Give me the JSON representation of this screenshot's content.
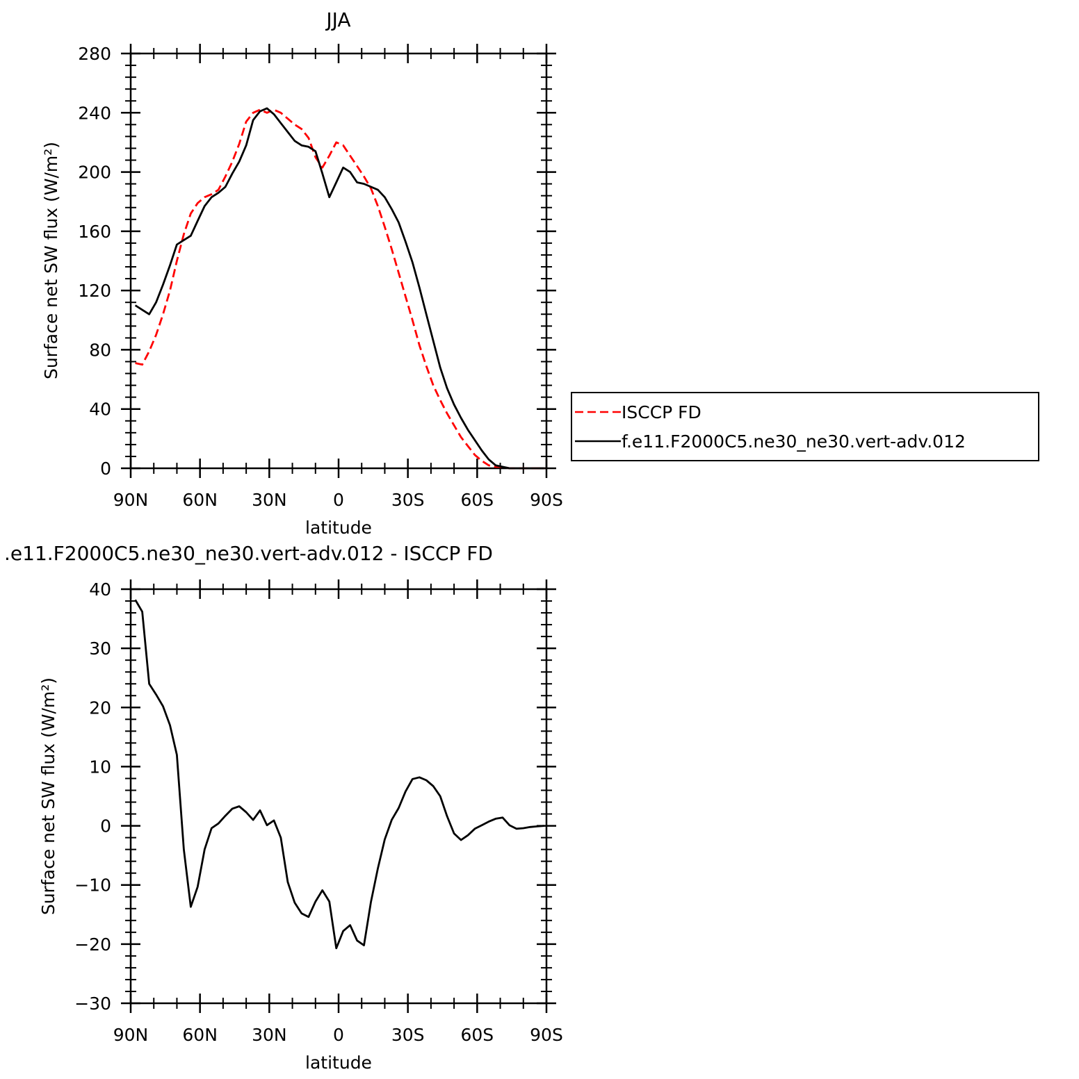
{
  "chart_data": [
    {
      "type": "line",
      "title": "JJA",
      "xlabel": "latitude",
      "ylabel": "Surface net SW flux (W/m²)",
      "xlim": [
        90,
        -90
      ],
      "ylim": [
        0,
        280
      ],
      "yticks": [
        0,
        40,
        80,
        120,
        160,
        200,
        240,
        280
      ],
      "xticks": [
        90,
        60,
        30,
        0,
        -30,
        -60,
        -90
      ],
      "xtick_labels": [
        "90N",
        "60N",
        "30N",
        "0",
        "30S",
        "60S",
        "90S"
      ],
      "grid": false,
      "legend_placement": "right",
      "x": [
        88,
        85,
        82,
        79,
        76,
        73,
        70,
        67,
        64,
        61,
        58,
        55,
        52,
        49,
        46,
        43,
        40,
        37,
        34,
        31,
        28,
        25,
        22,
        19,
        16,
        13,
        10,
        7,
        4,
        1,
        -2,
        -5,
        -8,
        -11,
        -14,
        -17,
        -20,
        -23,
        -26,
        -29,
        -32,
        -35,
        -38,
        -41,
        -44,
        -47,
        -50,
        -53,
        -56,
        -59,
        -62,
        -65,
        -68,
        -71,
        -74,
        -77,
        -80,
        -83,
        -86,
        -89
      ],
      "series": [
        {
          "name": "ISCCP FD",
          "color": "#ff0000",
          "dash": "dashed",
          "values": [
            71,
            70,
            79,
            90,
            104,
            120,
            140,
            158,
            172,
            179,
            183,
            185,
            188,
            197,
            207,
            219,
            234,
            240,
            242,
            240,
            242,
            240,
            236,
            232,
            229,
            223,
            210,
            203,
            211,
            220,
            218,
            211,
            204,
            197,
            189,
            177,
            163,
            148,
            132,
            116,
            100,
            83,
            69,
            56,
            46,
            37,
            29,
            21,
            15,
            9,
            5,
            2,
            1,
            1,
            0,
            0,
            0,
            0,
            0,
            0
          ]
        },
        {
          "name": "f.e11.F2000C5.ne30_ne30.vert-adv.012",
          "color": "#000000",
          "dash": "solid",
          "values": [
            110,
            107,
            104,
            112,
            124,
            137,
            151,
            154,
            157,
            167,
            177,
            183,
            186,
            190,
            199,
            207,
            218,
            235,
            241,
            243,
            239,
            233,
            227,
            221,
            218,
            217,
            214,
            199,
            183,
            193,
            203,
            200,
            193,
            192,
            190,
            188,
            183,
            175,
            166,
            153,
            139,
            122,
            104,
            86,
            68,
            54,
            43,
            34,
            26,
            19,
            12,
            6,
            2,
            1,
            0,
            0,
            0,
            0,
            0,
            0
          ]
        }
      ]
    },
    {
      "type": "line",
      "title": ".e11.F2000C5.ne30_ne30.vert-adv.012 - ISCCP FD",
      "xlabel": "latitude",
      "ylabel": "Surface net SW flux (W/m²)",
      "xlim": [
        90,
        -90
      ],
      "ylim": [
        -30,
        40
      ],
      "yticks": [
        -30,
        -20,
        -10,
        0,
        10,
        20,
        30,
        40
      ],
      "ytick_labels": [
        "−30",
        "−20",
        "−10",
        "0",
        "10",
        "20",
        "30",
        "40"
      ],
      "xticks": [
        90,
        60,
        30,
        0,
        -30,
        -60,
        -90
      ],
      "xtick_labels": [
        "90N",
        "60N",
        "30N",
        "0",
        "30S",
        "60S",
        "90S"
      ],
      "grid": false,
      "x": [
        88,
        85,
        82,
        79,
        76,
        73,
        70,
        67,
        64,
        61,
        58,
        55,
        52,
        49,
        46,
        43,
        40,
        37,
        34,
        31,
        28,
        25,
        22,
        19,
        16,
        13,
        10,
        7,
        4,
        1,
        -2,
        -5,
        -8,
        -11,
        -14,
        -17,
        -20,
        -23,
        -26,
        -29,
        -32,
        -35,
        -38,
        -41,
        -44,
        -47,
        -50,
        -53,
        -56,
        -59,
        -62,
        -65,
        -68,
        -71,
        -74,
        -77,
        -80,
        -83,
        -86,
        -89
      ],
      "series": [
        {
          "color": "#000000",
          "dash": "solid",
          "values": [
            38.2,
            36.2,
            24,
            22.2,
            20.2,
            17,
            12,
            -4,
            -13.7,
            -10.3,
            -4,
            -0.4,
            0.4,
            1.7,
            2.9,
            3.3,
            2.3,
            1,
            2.6,
            0.1,
            0.9,
            -2,
            -9.5,
            -13,
            -14.8,
            -15.4,
            -12.8,
            -10.9,
            -12.8,
            -20.7,
            -17.8,
            -16.8,
            -19.4,
            -20.2,
            -12.9,
            -7.2,
            -2.3,
            1,
            3,
            5.8,
            7.9,
            8.2,
            7.7,
            6.7,
            5,
            1.6,
            -1.3,
            -2.4,
            -1.6,
            -0.5,
            0.1,
            0.7,
            1.2,
            1.4,
            0.1,
            -0.5,
            -0.4,
            -0.2,
            -0.1,
            0
          ]
        }
      ]
    }
  ]
}
